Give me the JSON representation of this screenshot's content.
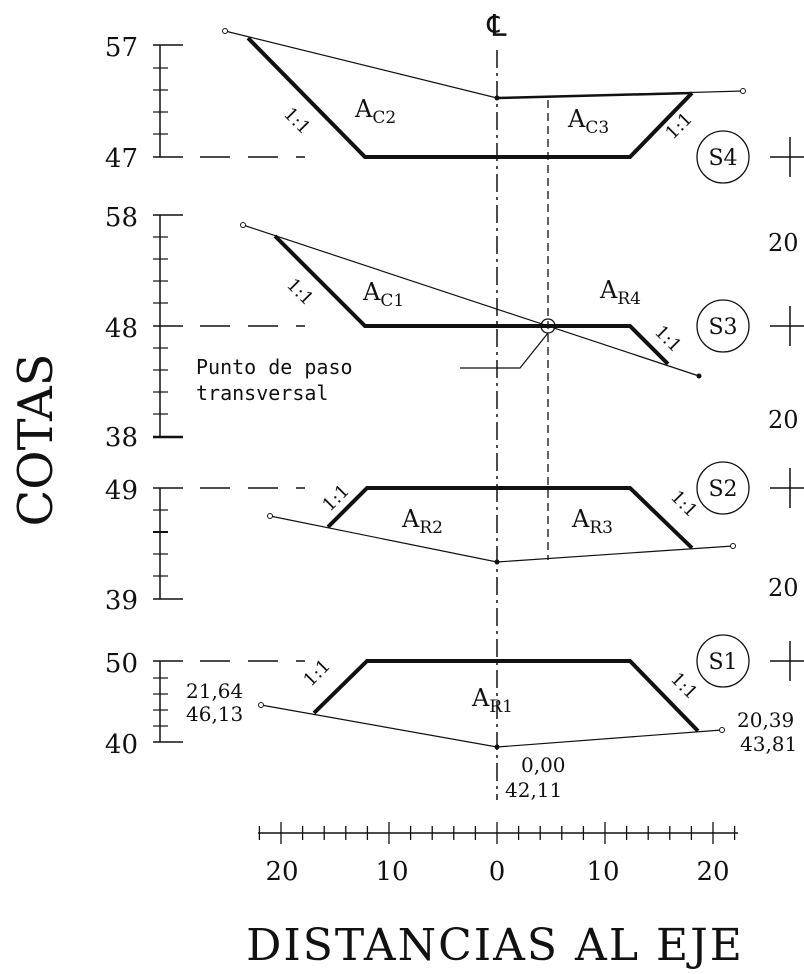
{
  "y_axis_title": "COTAS",
  "x_axis_title": "DISTANCIAS AL EJE",
  "centerline_symbol": "℄",
  "x_ticks": [
    "20",
    "10",
    "0",
    "10",
    "20"
  ],
  "sections": [
    {
      "id": "S4",
      "y_top": "57",
      "y_bottom": "47",
      "slopes": [
        "1:1",
        "1:1"
      ],
      "areas": [
        {
          "main": "A",
          "sub": "C2"
        },
        {
          "main": "A",
          "sub": "C3"
        }
      ],
      "station": "20"
    },
    {
      "id": "S3",
      "y_top": "58",
      "y_bottom": "38",
      "y_mid": "48",
      "slopes": [
        "1:1",
        "1:1"
      ],
      "areas": [
        {
          "main": "A",
          "sub": "C1"
        },
        {
          "main": "A",
          "sub": "R4"
        }
      ],
      "station": "20"
    },
    {
      "id": "S2",
      "y_top": "49",
      "y_bottom": "39",
      "slopes": [
        "1:1",
        "1:1"
      ],
      "areas": [
        {
          "main": "A",
          "sub": "R2"
        },
        {
          "main": "A",
          "sub": "R3"
        }
      ],
      "station": "20"
    },
    {
      "id": "S1",
      "y_top": "50",
      "y_bottom": "40",
      "slopes": [
        "1:1",
        "1:1"
      ],
      "areas": [
        {
          "main": "A",
          "sub": "R1"
        }
      ]
    }
  ],
  "transverse_note": {
    "line1": "Punto de paso",
    "line2": "transversal"
  },
  "s1_points": {
    "left": {
      "dist": "21,64",
      "elev": "46,13"
    },
    "center": {
      "dist": "0,00",
      "elev": "42,11"
    },
    "right": {
      "dist": "20,39",
      "elev": "43,81"
    }
  }
}
